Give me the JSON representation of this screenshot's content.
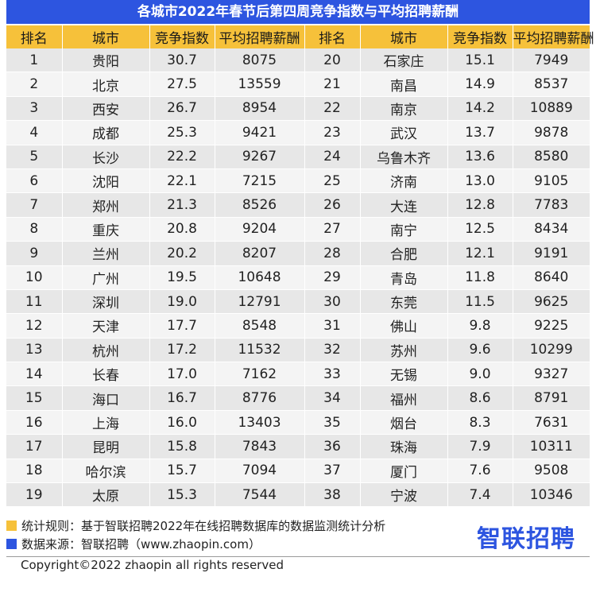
{
  "chart_data": {
    "type": "table",
    "title": "各城市2022年春节后第四周竞争指数与平均招聘薪酬",
    "columns": [
      "排名",
      "城市",
      "竞争指数",
      "平均招聘薪酬",
      "排名",
      "城市",
      "竞争指数",
      "平均招聘薪酬"
    ],
    "rows": [
      [
        1,
        "贵阳",
        "30.7",
        8075,
        20,
        "石家庄",
        "15.1",
        7949
      ],
      [
        2,
        "北京",
        "27.5",
        13559,
        21,
        "南昌",
        "14.9",
        8537
      ],
      [
        3,
        "西安",
        "26.7",
        8954,
        22,
        "南京",
        "14.2",
        10889
      ],
      [
        4,
        "成都",
        "25.3",
        9421,
        23,
        "武汉",
        "13.7",
        9878
      ],
      [
        5,
        "长沙",
        "22.2",
        9267,
        24,
        "乌鲁木齐",
        "13.6",
        8580
      ],
      [
        6,
        "沈阳",
        "22.1",
        7215,
        25,
        "济南",
        "13.0",
        9105
      ],
      [
        7,
        "郑州",
        "21.3",
        8526,
        26,
        "大连",
        "12.8",
        7783
      ],
      [
        8,
        "重庆",
        "20.8",
        9204,
        27,
        "南宁",
        "12.5",
        8434
      ],
      [
        9,
        "兰州",
        "20.2",
        8207,
        28,
        "合肥",
        "12.1",
        9191
      ],
      [
        10,
        "广州",
        "19.5",
        10648,
        29,
        "青岛",
        "11.8",
        8640
      ],
      [
        11,
        "深圳",
        "19.0",
        12791,
        30,
        "东莞",
        "11.5",
        9625
      ],
      [
        12,
        "天津",
        "17.7",
        8548,
        31,
        "佛山",
        "9.8",
        9225
      ],
      [
        13,
        "杭州",
        "17.2",
        11532,
        32,
        "苏州",
        "9.6",
        10299
      ],
      [
        14,
        "长春",
        "17.0",
        7162,
        33,
        "无锡",
        "9.0",
        9327
      ],
      [
        15,
        "海口",
        "16.7",
        8776,
        34,
        "福州",
        "8.6",
        8791
      ],
      [
        16,
        "上海",
        "16.0",
        13403,
        35,
        "烟台",
        "8.3",
        7631
      ],
      [
        17,
        "昆明",
        "15.8",
        7843,
        36,
        "珠海",
        "7.9",
        10311
      ],
      [
        18,
        "哈尔滨",
        "15.7",
        7094,
        37,
        "厦门",
        "7.6",
        9508
      ],
      [
        19,
        "太原",
        "15.3",
        7544,
        38,
        "宁波",
        "7.4",
        10346
      ]
    ]
  },
  "colors": {
    "title_bg": "#2d55e0",
    "header_bg": "#f6c13a",
    "row_odd": "#e7e7e7",
    "row_even": "#f4f4f4",
    "logo": "#2d55e0"
  },
  "footer": {
    "note_rule": "统计规则：基于智联招聘2022年在线招聘数据库的数据监测统计分析",
    "note_source": "数据来源：智联招聘（www.zhaopin.com）",
    "logo_text": "智联招聘",
    "copyright": "Copyright©2022 zhaopin all rights reserved",
    "icons": [
      "yellow-square-icon",
      "blue-square-icon"
    ]
  }
}
